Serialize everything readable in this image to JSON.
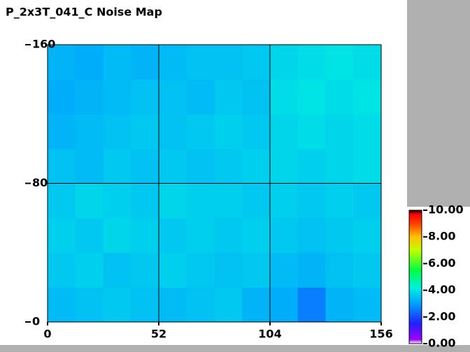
{
  "chart_data": {
    "type": "heatmap",
    "title": "P_2x3T_041_C Noise Map",
    "x": [
      0,
      13,
      26,
      39,
      52,
      65,
      78,
      91,
      104,
      117,
      130,
      143,
      156
    ],
    "y": [
      0,
      20,
      40,
      60,
      80,
      100,
      120,
      140,
      160
    ],
    "z": [
      [
        3.4,
        3.5,
        3.6,
        3.5,
        3.4,
        3.5,
        3.6,
        3.3,
        3.2,
        2.6,
        3.3,
        3.4
      ],
      [
        3.6,
        3.7,
        3.5,
        3.6,
        3.7,
        3.6,
        3.5,
        3.6,
        3.4,
        3.3,
        3.5,
        3.6
      ],
      [
        3.7,
        3.6,
        3.8,
        3.7,
        3.6,
        3.7,
        3.6,
        3.7,
        3.6,
        3.5,
        3.6,
        3.7
      ],
      [
        3.6,
        3.8,
        3.7,
        3.6,
        3.8,
        3.7,
        3.7,
        3.6,
        3.7,
        3.6,
        3.7,
        3.6
      ],
      [
        3.5,
        3.4,
        3.6,
        3.5,
        3.6,
        3.5,
        3.6,
        3.7,
        3.8,
        3.7,
        3.8,
        3.9
      ],
      [
        3.3,
        3.4,
        3.5,
        3.6,
        3.5,
        3.6,
        3.7,
        3.6,
        3.8,
        3.9,
        3.8,
        3.9
      ],
      [
        3.2,
        3.3,
        3.4,
        3.5,
        3.5,
        3.4,
        3.6,
        3.5,
        3.9,
        4.0,
        3.9,
        4.0
      ],
      [
        3.3,
        3.2,
        3.4,
        3.3,
        3.4,
        3.5,
        3.5,
        3.6,
        3.8,
        3.9,
        4.0,
        3.9
      ]
    ],
    "xlim": [
      0,
      156
    ],
    "xticks": [
      0,
      52,
      104,
      156
    ],
    "ylim": [
      0,
      160
    ],
    "yticks": [
      0,
      80,
      160
    ],
    "grid": true,
    "zlim": [
      0,
      10
    ],
    "zticks": [
      {
        "value": 0,
        "label": "0.00"
      },
      {
        "value": 2,
        "label": "2.00"
      },
      {
        "value": 4,
        "label": "4.00"
      },
      {
        "value": 6,
        "label": "6.00"
      },
      {
        "value": 8,
        "label": "8.00"
      },
      {
        "value": 10,
        "label": "10.00"
      }
    ],
    "colorscale": [
      [
        0,
        "#ffffff"
      ],
      [
        0.3,
        "#a000ff"
      ],
      [
        1.5,
        "#2020ff"
      ],
      [
        3,
        "#00a0ff"
      ],
      [
        4.2,
        "#00f0e0"
      ],
      [
        5.5,
        "#00ff40"
      ],
      [
        7,
        "#c0ff00"
      ],
      [
        8,
        "#ffc000"
      ],
      [
        9,
        "#ff4000"
      ],
      [
        9.7,
        "#ff0000"
      ],
      [
        10,
        "#000000"
      ]
    ]
  }
}
